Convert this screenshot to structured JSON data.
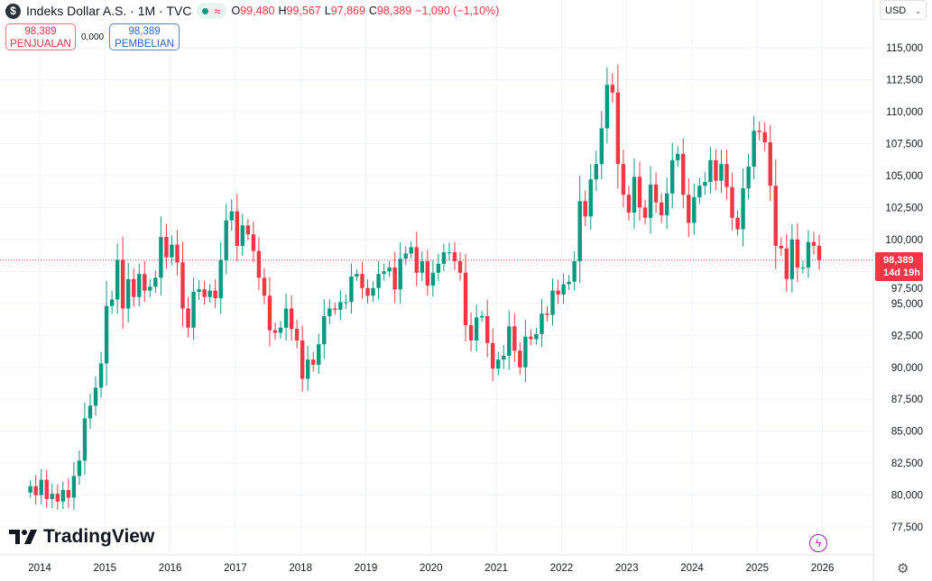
{
  "header": {
    "logo_letter": "$",
    "title": "Indeks Dollar A.S. · 1M · TVC",
    "o_label": "O",
    "o": "99,480",
    "h_label": "H",
    "h": "99,567",
    "l_label": "L",
    "l": "97,869",
    "c_label": "C",
    "c": "98,389",
    "change": "−1,090 (−1,10%)",
    "approx_icon": "≈"
  },
  "trade": {
    "sell_price": "98,389",
    "sell_label": "PENJUALAN",
    "spread": "0,000",
    "buy_price": "98,389",
    "buy_label": "PEMBELIAN"
  },
  "currency": {
    "label": "USD",
    "chevron": "⌄"
  },
  "price_label": {
    "price": "98,389",
    "countdown": "14d 19h"
  },
  "watermark": "TradingView",
  "colors": {
    "up": "#089981",
    "down": "#f23645"
  },
  "chart_data": {
    "type": "candlestick",
    "interval": "1M",
    "start": "2013-11",
    "first_open": 80.2,
    "closes": [
      80.7,
      80.0,
      81.2,
      79.7,
      80.1,
      79.5,
      80.4,
      79.8,
      81.5,
      82.7,
      86.0,
      87.0,
      88.4,
      90.3,
      94.8,
      95.3,
      98.4,
      94.6,
      96.9,
      95.5,
      97.3,
      96.0,
      96.3,
      97.0,
      100.2,
      98.6,
      99.6,
      98.2,
      94.6,
      93.1,
      95.9,
      96.1,
      95.5,
      96.0,
      95.4,
      98.4,
      101.5,
      102.2,
      99.5,
      101.1,
      100.4,
      99.1,
      97.0,
      95.6,
      92.9,
      92.7,
      93.1,
      94.6,
      93.0,
      92.1,
      89.1,
      90.6,
      90.2,
      91.8,
      94.0,
      94.6,
      94.5,
      95.1,
      95.1,
      97.1,
      97.3,
      96.2,
      95.6,
      96.2,
      97.3,
      97.5,
      97.8,
      96.1,
      98.5,
      98.9,
      99.4,
      97.4,
      98.3,
      96.4,
      97.4,
      98.1,
      99.0,
      99.0,
      98.3,
      97.4,
      93.3,
      92.1,
      93.9,
      94.0,
      91.9,
      89.9,
      90.6,
      90.9,
      93.2,
      91.3,
      90.0,
      92.4,
      92.2,
      92.6,
      94.2,
      94.1,
      96.0,
      95.7,
      96.5,
      96.7,
      98.3,
      103.0,
      101.8,
      104.7,
      105.9,
      108.7,
      112.1,
      111.5,
      105.9,
      103.5,
      102.1,
      104.9,
      102.5,
      101.7,
      104.3,
      102.9,
      101.9,
      103.6,
      106.2,
      106.7,
      103.5,
      101.3,
      103.3,
      104.2,
      104.5,
      106.2,
      104.6,
      105.9,
      104.1,
      101.7,
      100.8,
      104.0,
      105.7,
      108.5,
      108.4,
      107.6,
      104.2,
      99.5,
      99.3,
      96.9,
      100.0,
      97.8,
      97.8,
      99.8,
      99.5,
      98.389
    ],
    "y_ticks": [
      "115,000",
      "112,500",
      "110,000",
      "107,500",
      "105,000",
      "102,500",
      "100,000",
      "97,500",
      "95,000",
      "92,500",
      "90,000",
      "87,500",
      "85,000",
      "82,500",
      "80,000",
      "77,500"
    ],
    "y_tick_values": [
      115,
      112.5,
      110,
      107.5,
      105,
      102.5,
      100,
      97.5,
      95,
      92.5,
      90,
      87.5,
      85,
      82.5,
      80,
      77.5
    ],
    "x_ticks": [
      "2014",
      "2015",
      "2016",
      "2017",
      "2018",
      "2019",
      "2020",
      "2021",
      "2022",
      "2023",
      "2024",
      "2025",
      "2026"
    ],
    "ylim": [
      76,
      117
    ],
    "last_price": 98.389
  }
}
